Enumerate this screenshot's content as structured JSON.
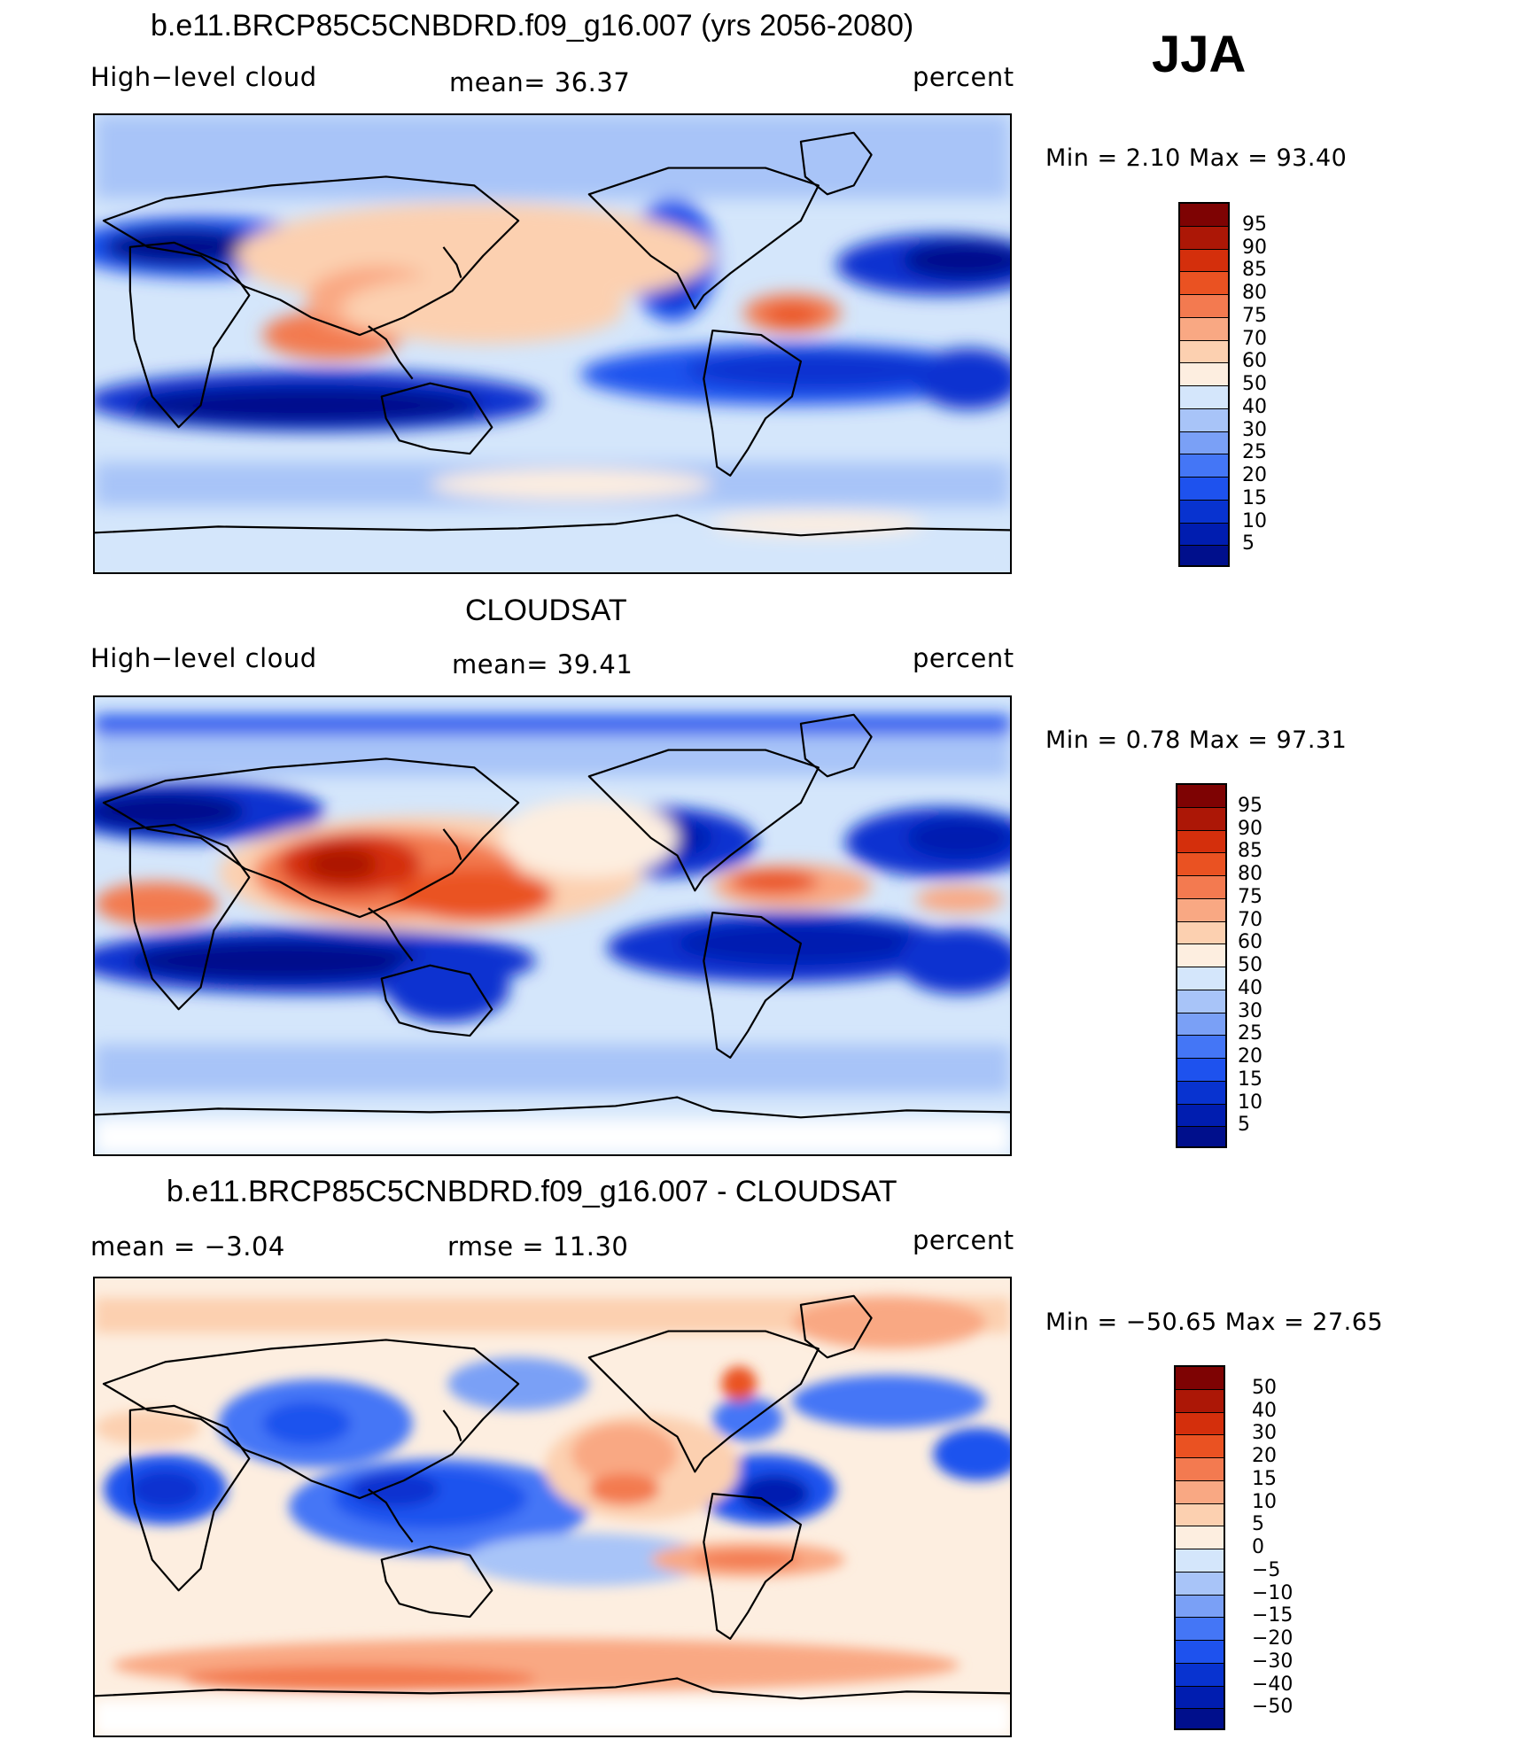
{
  "season": "JJA",
  "palette_blue_to_red": [
    "#000f8c",
    "#001db0",
    "#0833d0",
    "#1e52ee",
    "#4476f6",
    "#7aa0f6",
    "#a8c4f8",
    "#d4e6fb",
    "#fdeee0",
    "#fcd0b0",
    "#f9a883",
    "#f37a50",
    "#ea5222",
    "#d42f0c",
    "#ac1706",
    "#7e0303"
  ],
  "panels": [
    {
      "id": "model",
      "title": "b.e11.BRCP85C5CNBDRD.f09_g16.007 (yrs 2056-2080)",
      "left_label": "High−level cloud",
      "center_label": "mean=   36.37",
      "right_label": "percent",
      "minmax": "Min =    2.10  Max =   93.40",
      "colorbar_ticks": [
        "95",
        "90",
        "85",
        "80",
        "75",
        "70",
        "60",
        "50",
        "40",
        "30",
        "25",
        "20",
        "15",
        "10",
        "5"
      ]
    },
    {
      "id": "obs",
      "title": "CLOUDSAT",
      "left_label": "High−level cloud",
      "center_label": "mean=   39.41",
      "right_label": "percent",
      "minmax": "Min =    0.78  Max =   97.31",
      "colorbar_ticks": [
        "95",
        "90",
        "85",
        "80",
        "75",
        "70",
        "60",
        "50",
        "40",
        "30",
        "25",
        "20",
        "15",
        "10",
        "5"
      ]
    },
    {
      "id": "diff",
      "title": "b.e11.BRCP85C5CNBDRD.f09_g16.007 - CLOUDSAT",
      "left_label": "mean =   −3.04",
      "center_label": "rmse =   11.30",
      "right_label": "percent",
      "minmax": "Min = −50.65  Max =   27.65",
      "colorbar_ticks": [
        "50",
        "40",
        "30",
        "20",
        "15",
        "10",
        "5",
        "0",
        "−5",
        "−10",
        "−15",
        "−20",
        "−30",
        "−40",
        "−50"
      ]
    }
  ]
}
